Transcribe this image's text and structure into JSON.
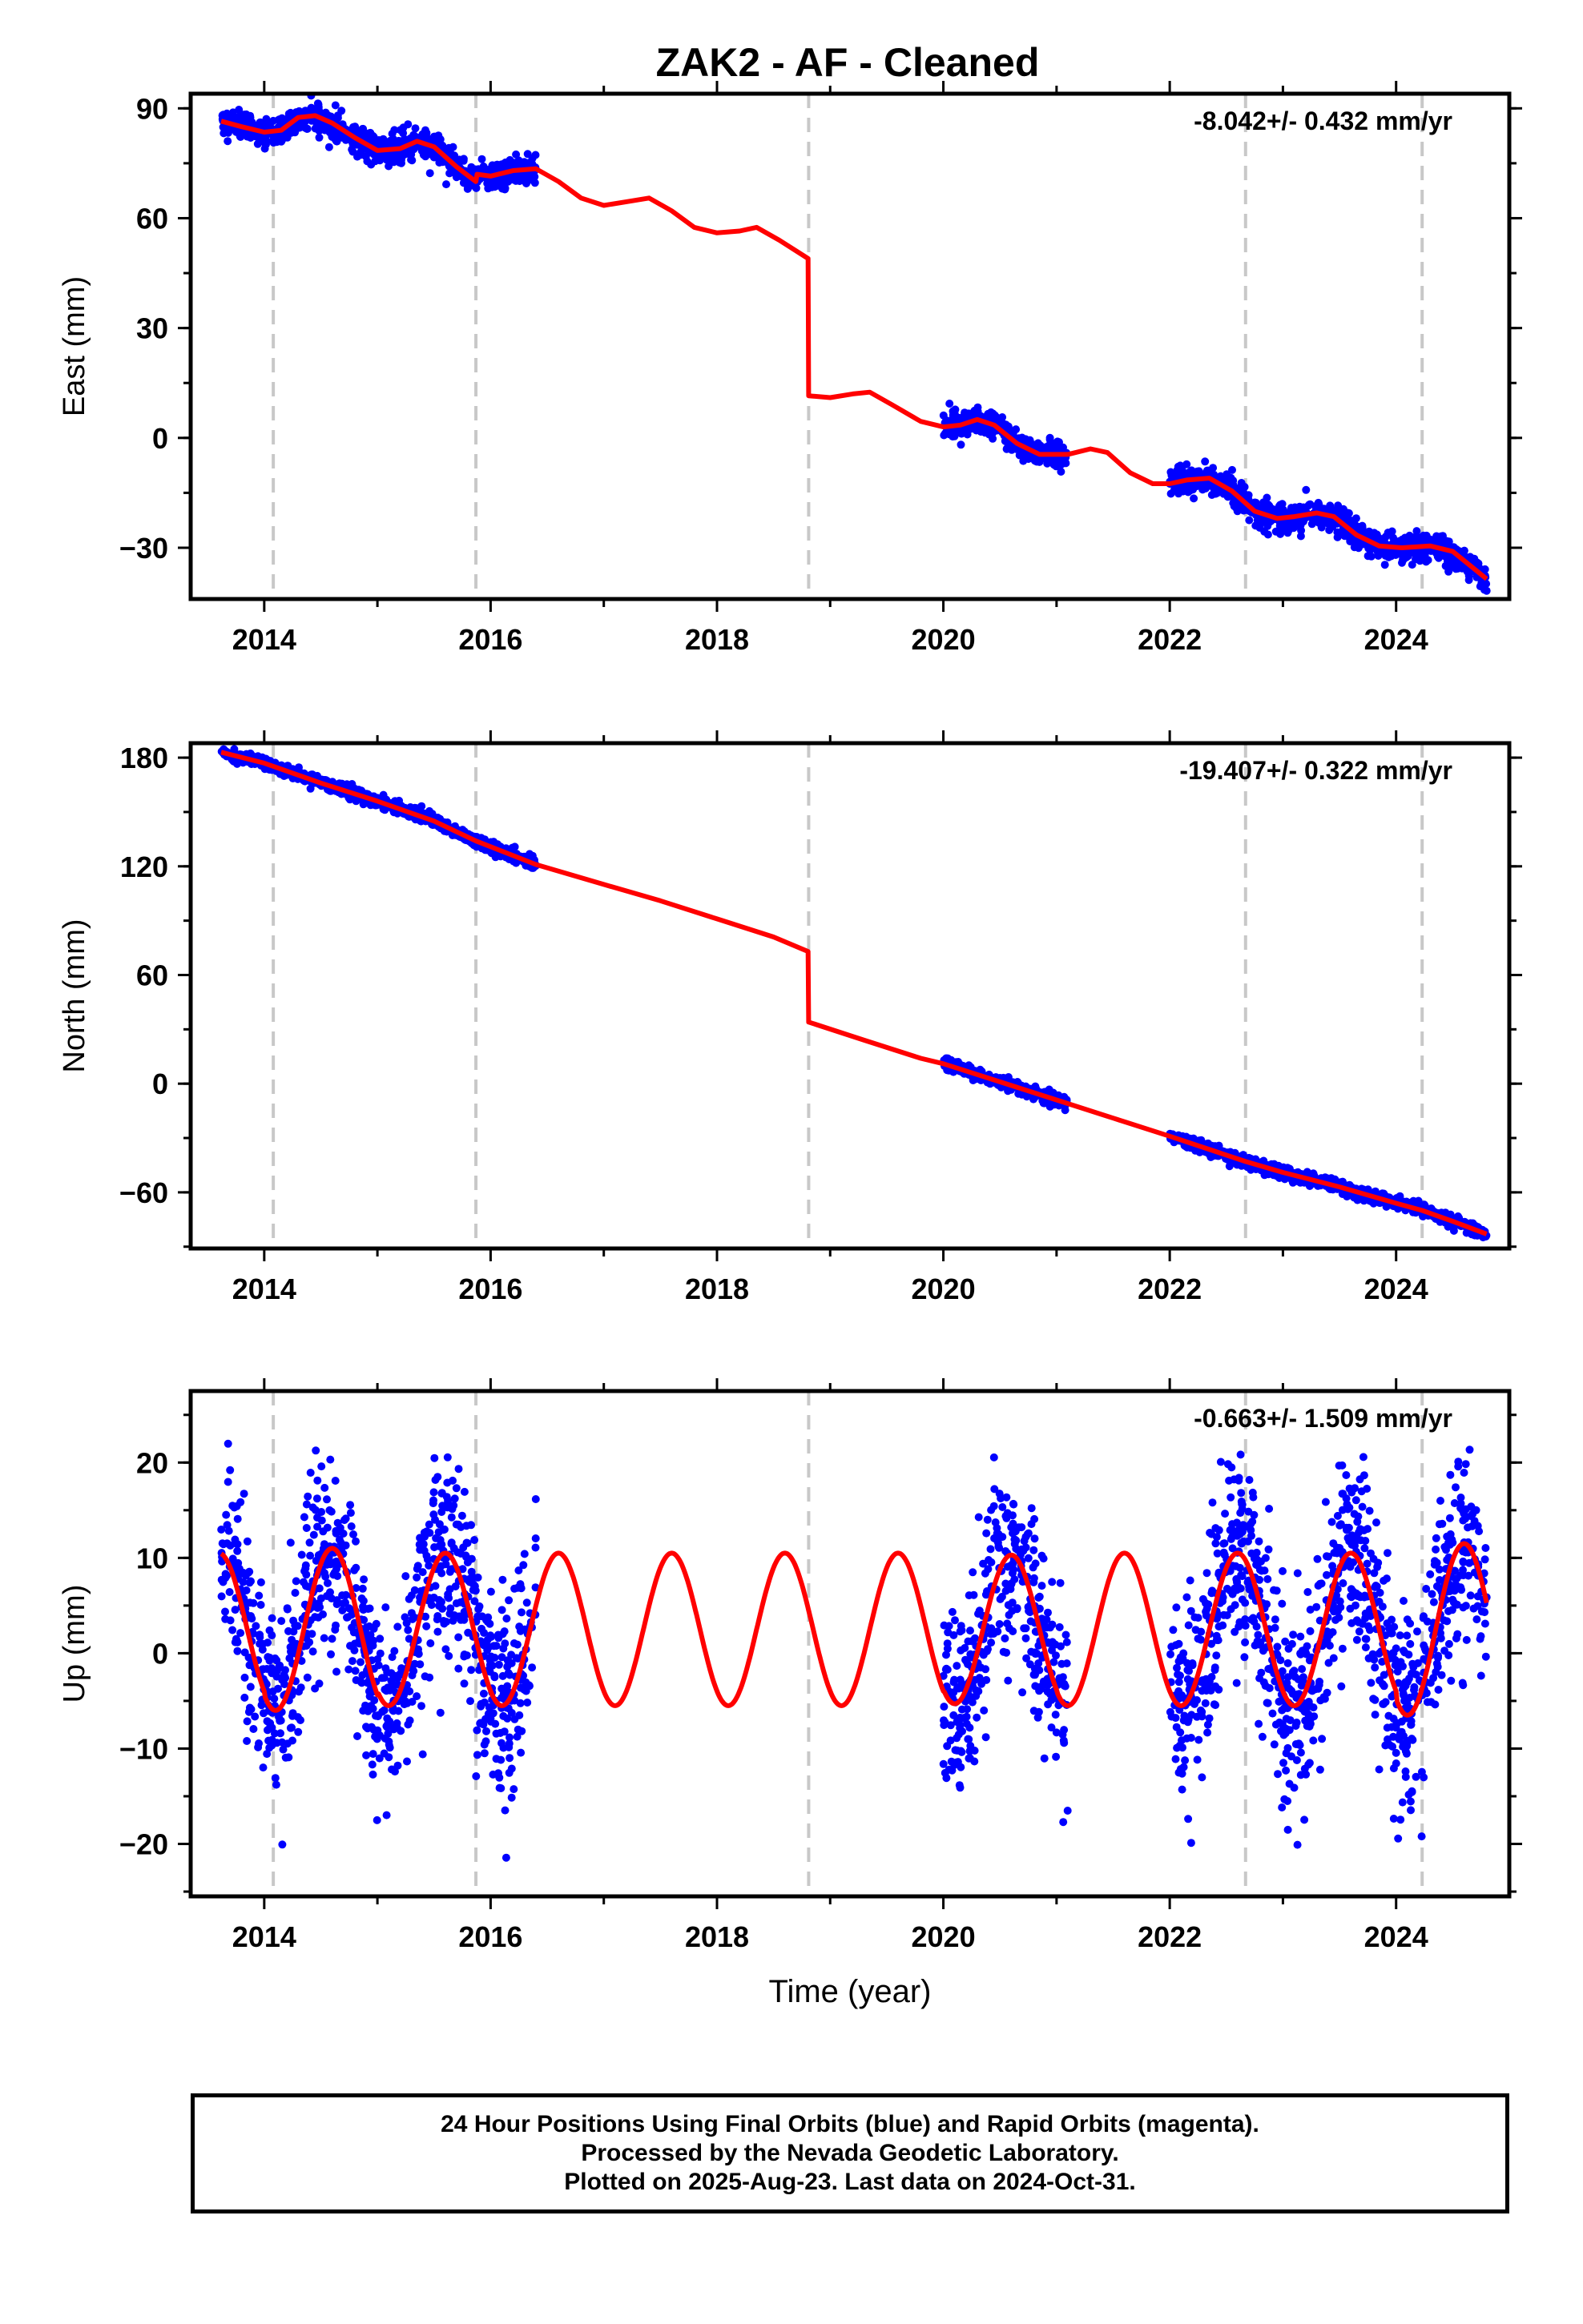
{
  "title": "ZAK2  - AF - Cleaned",
  "colors": {
    "data_points": "#0000ff",
    "model_line": "#ff0000",
    "break_lines": "#c8c8c8",
    "axes": "#000000"
  },
  "chart_data": [
    {
      "type": "scatter",
      "component": "east",
      "ylabel": "East (mm)",
      "xlabel": "",
      "rate_label": "-8.042+/- 0.432 mm/yr",
      "xlim": [
        2013.35,
        2025.0
      ],
      "ylim": [
        -44,
        94
      ],
      "xticks": [
        2014,
        2016,
        2018,
        2020,
        2022,
        2024
      ],
      "yticks": [
        -30,
        0,
        30,
        60,
        90
      ],
      "grid": false,
      "vertical_lines": [
        2014.08,
        2015.87,
        2018.81,
        2022.67,
        2024.23
      ],
      "data_segments": [
        [
          2013.62,
          2016.4
        ],
        [
          2020.0,
          2021.1
        ],
        [
          2022.0,
          2024.8
        ]
      ],
      "data_scatter_mm": 1.8,
      "model": {
        "series": "red model fit",
        "points": [
          [
            2013.62,
            86.5
          ],
          [
            2013.8,
            85.0
          ],
          [
            2014.0,
            83.5
          ],
          [
            2014.15,
            84.0
          ],
          [
            2014.3,
            87.5
          ],
          [
            2014.45,
            88.0
          ],
          [
            2014.6,
            86.0
          ],
          [
            2014.8,
            82.0
          ],
          [
            2015.0,
            78.5
          ],
          [
            2015.2,
            79.0
          ],
          [
            2015.35,
            81.0
          ],
          [
            2015.5,
            79.5
          ],
          [
            2015.7,
            74.0
          ],
          [
            2015.87,
            70.0
          ],
          [
            2015.88,
            72.0
          ],
          [
            2016.0,
            71.5
          ],
          [
            2016.2,
            73.0
          ],
          [
            2016.4,
            73.5
          ],
          [
            2016.6,
            70.0
          ],
          [
            2016.8,
            65.5
          ],
          [
            2017.0,
            63.5
          ],
          [
            2017.2,
            64.5
          ],
          [
            2017.4,
            65.5
          ],
          [
            2017.6,
            62.0
          ],
          [
            2017.8,
            57.5
          ],
          [
            2018.0,
            56.0
          ],
          [
            2018.2,
            56.5
          ],
          [
            2018.35,
            57.5
          ],
          [
            2018.55,
            54.0
          ],
          [
            2018.805,
            49.0
          ],
          [
            2018.81,
            11.5
          ],
          [
            2019.0,
            11.0
          ],
          [
            2019.2,
            12.0
          ],
          [
            2019.35,
            12.5
          ],
          [
            2019.55,
            9.0
          ],
          [
            2019.8,
            4.5
          ],
          [
            2020.0,
            3.0
          ],
          [
            2020.15,
            3.5
          ],
          [
            2020.3,
            5.0
          ],
          [
            2020.45,
            3.5
          ],
          [
            2020.65,
            -1.5
          ],
          [
            2020.85,
            -4.5
          ],
          [
            2021.1,
            -4.5
          ],
          [
            2021.3,
            -3.0
          ],
          [
            2021.45,
            -4.0
          ],
          [
            2021.65,
            -9.5
          ],
          [
            2021.85,
            -12.5
          ],
          [
            2022.0,
            -12.5
          ],
          [
            2022.15,
            -11.5
          ],
          [
            2022.35,
            -11.0
          ],
          [
            2022.55,
            -14.5
          ],
          [
            2022.75,
            -20.0
          ],
          [
            2022.95,
            -22.0
          ],
          [
            2023.1,
            -21.5
          ],
          [
            2023.3,
            -20.5
          ],
          [
            2023.45,
            -21.5
          ],
          [
            2023.65,
            -26.5
          ],
          [
            2023.85,
            -29.5
          ],
          [
            2024.05,
            -30.0
          ],
          [
            2024.3,
            -29.5
          ],
          [
            2024.5,
            -31.0
          ],
          [
            2024.7,
            -36.0
          ],
          [
            2024.8,
            -38.5
          ]
        ]
      }
    },
    {
      "type": "scatter",
      "component": "north",
      "ylabel": "North (mm)",
      "xlabel": "",
      "rate_label": "-19.407+/- 0.322 mm/yr",
      "xlim": [
        2013.35,
        2025.0
      ],
      "ylim": [
        -91,
        188
      ],
      "xticks": [
        2014,
        2016,
        2018,
        2020,
        2022,
        2024
      ],
      "yticks": [
        -60,
        0,
        60,
        120,
        180
      ],
      "grid": false,
      "vertical_lines": [
        2014.08,
        2015.87,
        2018.81,
        2022.67,
        2024.23
      ],
      "data_segments": [
        [
          2013.62,
          2016.4
        ],
        [
          2020.0,
          2021.1
        ],
        [
          2022.0,
          2024.8
        ]
      ],
      "data_scatter_mm": 1.6,
      "model": {
        "series": "red model fit",
        "points": [
          [
            2013.62,
            183.0
          ],
          [
            2014.0,
            177.0
          ],
          [
            2014.5,
            166.0
          ],
          [
            2015.0,
            156.0
          ],
          [
            2015.5,
            145.0
          ],
          [
            2015.87,
            134.0
          ],
          [
            2016.4,
            121.0
          ],
          [
            2017.0,
            110.0
          ],
          [
            2017.5,
            101.0
          ],
          [
            2018.0,
            91.0
          ],
          [
            2018.5,
            81.0
          ],
          [
            2018.805,
            73.0
          ],
          [
            2018.81,
            34.0
          ],
          [
            2019.3,
            24.0
          ],
          [
            2019.8,
            14.0
          ],
          [
            2020.0,
            11.0
          ],
          [
            2020.5,
            1.0
          ],
          [
            2021.0,
            -9.0
          ],
          [
            2021.5,
            -19.0
          ],
          [
            2022.0,
            -29.0
          ],
          [
            2022.67,
            -43.0
          ],
          [
            2023.0,
            -49.0
          ],
          [
            2023.5,
            -57.0
          ],
          [
            2024.0,
            -66.0
          ],
          [
            2024.23,
            -70.0
          ],
          [
            2024.5,
            -76.0
          ],
          [
            2024.8,
            -83.0
          ]
        ]
      }
    },
    {
      "type": "scatter",
      "component": "up",
      "ylabel": "Up (mm)",
      "xlabel": "Time (year)",
      "rate_label": "-0.663+/- 1.509 mm/yr",
      "xlim": [
        2013.35,
        2025.0
      ],
      "ylim": [
        -25.5,
        27.5
      ],
      "xticks": [
        2014,
        2016,
        2018,
        2020,
        2022,
        2024
      ],
      "yticks": [
        -20,
        -10,
        0,
        10,
        20
      ],
      "grid": false,
      "vertical_lines": [
        2014.08,
        2015.87,
        2018.81,
        2022.67,
        2024.23
      ],
      "data_segments": [
        [
          2013.62,
          2016.4
        ],
        [
          2020.0,
          2021.1
        ],
        [
          2022.0,
          2024.8
        ]
      ],
      "data_scatter_mm": 5.0,
      "model": {
        "series": "red model fit",
        "amplitude_mm": 8.5,
        "period_years": 1.0,
        "peak_phase": 0.6,
        "offset_mm": 2.5,
        "annual_amplitudes": [
          [
            2013,
            8.0
          ],
          [
            2014,
            8.5
          ],
          [
            2015,
            8.0
          ],
          [
            2016,
            8.0
          ],
          [
            2017,
            8.0
          ],
          [
            2018,
            8.0
          ],
          [
            2019,
            8.0
          ],
          [
            2020,
            7.8
          ],
          [
            2021,
            8.0
          ],
          [
            2022,
            8.0
          ],
          [
            2023,
            8.0
          ],
          [
            2024,
            9.0
          ]
        ]
      }
    }
  ],
  "footer": {
    "line1": "24 Hour Positions Using Final Orbits (blue) and Rapid Orbits (magenta).",
    "line2": "Processed by the Nevada Geodetic Laboratory.",
    "line3": "Plotted on 2025-Aug-23. Last data on 2024-Oct-31."
  }
}
